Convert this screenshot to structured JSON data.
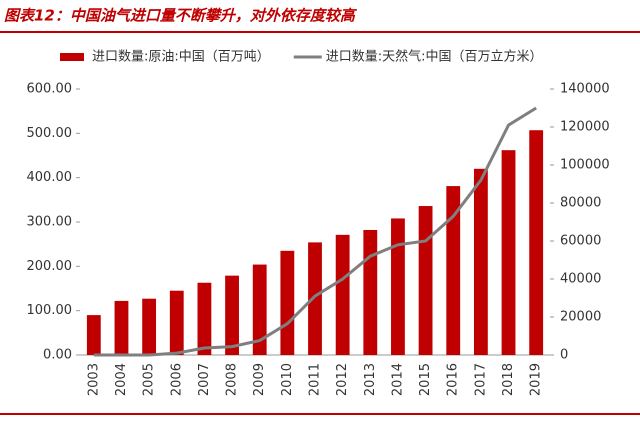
{
  "chart_data": {
    "type": "bar-line",
    "title": "图表12：中国油气进口量不断攀升，对外依存度较高",
    "categories": [
      "2003",
      "2004",
      "2005",
      "2006",
      "2007",
      "2008",
      "2009",
      "2010",
      "2011",
      "2012",
      "2013",
      "2014",
      "2015",
      "2016",
      "2017",
      "2018",
      "2019"
    ],
    "series": [
      {
        "name": "进口数量:原油:中国（百万吨）",
        "type": "bar",
        "color": "#c00000",
        "values": [
          90,
          122,
          127,
          145,
          163,
          179,
          204,
          235,
          254,
          271,
          282,
          308,
          336,
          381,
          420,
          462,
          507
        ]
      },
      {
        "name": "进口数量:天然气:中国（百万立方米）",
        "type": "line",
        "axis": "y2",
        "color": "#7f7f7f",
        "values": [
          0,
          0,
          0,
          1000,
          3700,
          4400,
          7600,
          16500,
          31000,
          40000,
          52000,
          58000,
          60000,
          73000,
          92000,
          121000,
          130000
        ]
      }
    ],
    "ylim": [
      0,
      600
    ],
    "yticks": [
      {
        "value": 0,
        "label": "0.00"
      },
      {
        "value": 100,
        "label": "100.00"
      },
      {
        "value": 200,
        "label": "200.00"
      },
      {
        "value": 300,
        "label": "300.00"
      },
      {
        "value": 400,
        "label": "400.00"
      },
      {
        "value": 500,
        "label": "500.00"
      },
      {
        "value": 600,
        "label": "600.00"
      }
    ],
    "y2lim": [
      0,
      140000
    ],
    "y2ticks": [
      0,
      20000,
      40000,
      60000,
      80000,
      100000,
      120000,
      140000
    ],
    "legend": "top"
  }
}
